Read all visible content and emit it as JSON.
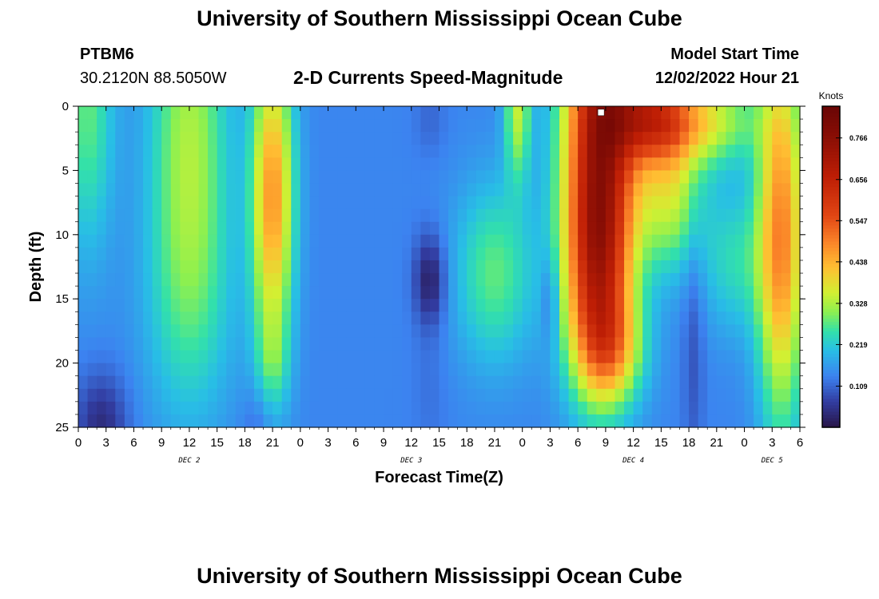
{
  "header": {
    "title": "University of Southern Mississippi Ocean Cube",
    "station_id": "PTBM6",
    "station_coords": "30.2120N  88.5050W",
    "chart_title": "2-D Currents Speed-Magnitude",
    "model_start_label": "Model Start Time",
    "model_start_value": "12/02/2022 Hour 21"
  },
  "footer": {
    "title": "University of Southern Mississippi Ocean Cube"
  },
  "chart_data": {
    "type": "heatmap",
    "title": "2-D Currents Speed-Magnitude",
    "xlabel": "Forecast Time(Z)",
    "ylabel": "Depth (ft)",
    "x_unit": "hours since 12/02/2022 00Z",
    "xlim": [
      0,
      78
    ],
    "ylim": [
      0,
      25
    ],
    "y_inverted": true,
    "x_ticks": [
      0,
      3,
      6,
      9,
      12,
      15,
      18,
      21,
      24,
      27,
      30,
      33,
      36,
      39,
      42,
      45,
      48,
      51,
      54,
      57,
      60,
      63,
      66,
      69,
      72,
      75,
      78
    ],
    "x_tick_labels": [
      "0",
      "3",
      "6",
      "9",
      "12",
      "15",
      "18",
      "21",
      "0",
      "3",
      "6",
      "9",
      "12",
      "15",
      "18",
      "21",
      "0",
      "3",
      "6",
      "9",
      "12",
      "15",
      "18",
      "21",
      "0",
      "3",
      "6"
    ],
    "y_ticks": [
      0,
      5,
      10,
      15,
      20,
      25
    ],
    "y_tick_labels": [
      "0",
      "5",
      "10",
      "15",
      "20",
      "25"
    ],
    "date_labels": [
      {
        "label": "DEC 2",
        "x": 12
      },
      {
        "label": "DEC 3",
        "x": 36
      },
      {
        "label": "DEC 4",
        "x": 60
      },
      {
        "label": "DEC 5",
        "x": 75
      }
    ],
    "colorbar": {
      "label": "Knots",
      "min": 0.0,
      "max": 0.85,
      "ticks": [
        0.109,
        0.219,
        0.328,
        0.438,
        0.547,
        0.656,
        0.766
      ],
      "tick_labels": [
        "0.109",
        "0.219",
        "0.328",
        "0.438",
        "0.547",
        "0.656",
        "0.766"
      ]
    },
    "marker": {
      "x": 56.5,
      "y": 0.3
    },
    "grid_resolution": {
      "x_steps": 78,
      "y_steps": 25
    },
    "features": [
      {
        "x": 1,
        "y": 0,
        "sx": 2,
        "sy": 8,
        "a": 0.14
      },
      {
        "x": 2.5,
        "y": 25,
        "sx": 2,
        "sy": 3,
        "a": -0.1
      },
      {
        "x": 12,
        "y": 2,
        "sx": 3,
        "sy": 10,
        "a": 0.18
      },
      {
        "x": 12,
        "y": 16,
        "sx": 3.5,
        "sy": 7,
        "a": 0.08
      },
      {
        "x": 21,
        "y": 7,
        "sx": 1.6,
        "sy": 8,
        "a": 0.33
      },
      {
        "x": 21,
        "y": 20,
        "sx": 1.3,
        "sy": 3,
        "a": 0.08
      },
      {
        "x": 19.5,
        "y": 25,
        "sx": 1.2,
        "sy": 2.5,
        "a": -0.04
      },
      {
        "x": 38,
        "y": 13.5,
        "sx": 1.2,
        "sy": 2.5,
        "a": -0.12
      },
      {
        "x": 38,
        "y": 22,
        "sx": 1.3,
        "sy": 4,
        "a": -0.02
      },
      {
        "x": 38,
        "y": 1,
        "sx": 1.2,
        "sy": 2,
        "a": -0.03
      },
      {
        "x": 45,
        "y": 13,
        "sx": 3,
        "sy": 5,
        "a": 0.14
      },
      {
        "x": 47.5,
        "y": 0,
        "sx": 1,
        "sy": 4,
        "a": 0.2
      },
      {
        "x": 51,
        "y": 15,
        "sx": 0.6,
        "sy": 2.5,
        "a": -0.07
      },
      {
        "x": 56.5,
        "y": 1,
        "sx": 2.8,
        "sy": 10,
        "a": 0.55
      },
      {
        "x": 56,
        "y": 13,
        "sx": 2.5,
        "sy": 6,
        "a": 0.3
      },
      {
        "x": 57.5,
        "y": 19,
        "sx": 2.5,
        "sy": 3,
        "a": 0.2
      },
      {
        "x": 62,
        "y": 0.8,
        "sx": 3,
        "sy": 2.5,
        "a": 0.35
      },
      {
        "x": 68,
        "y": 1,
        "sx": 4,
        "sy": 2.5,
        "a": 0.2
      },
      {
        "x": 64,
        "y": 7,
        "sx": 2.5,
        "sy": 4,
        "a": 0.2
      },
      {
        "x": 76,
        "y": 10,
        "sx": 1.8,
        "sy": 10,
        "a": 0.35
      },
      {
        "x": 71,
        "y": 12,
        "sx": 2.5,
        "sy": 4,
        "a": 0.1
      },
      {
        "x": 66.5,
        "y": 18,
        "sx": 0.8,
        "sy": 8,
        "a": -0.05
      }
    ],
    "background_value": 0.14
  }
}
